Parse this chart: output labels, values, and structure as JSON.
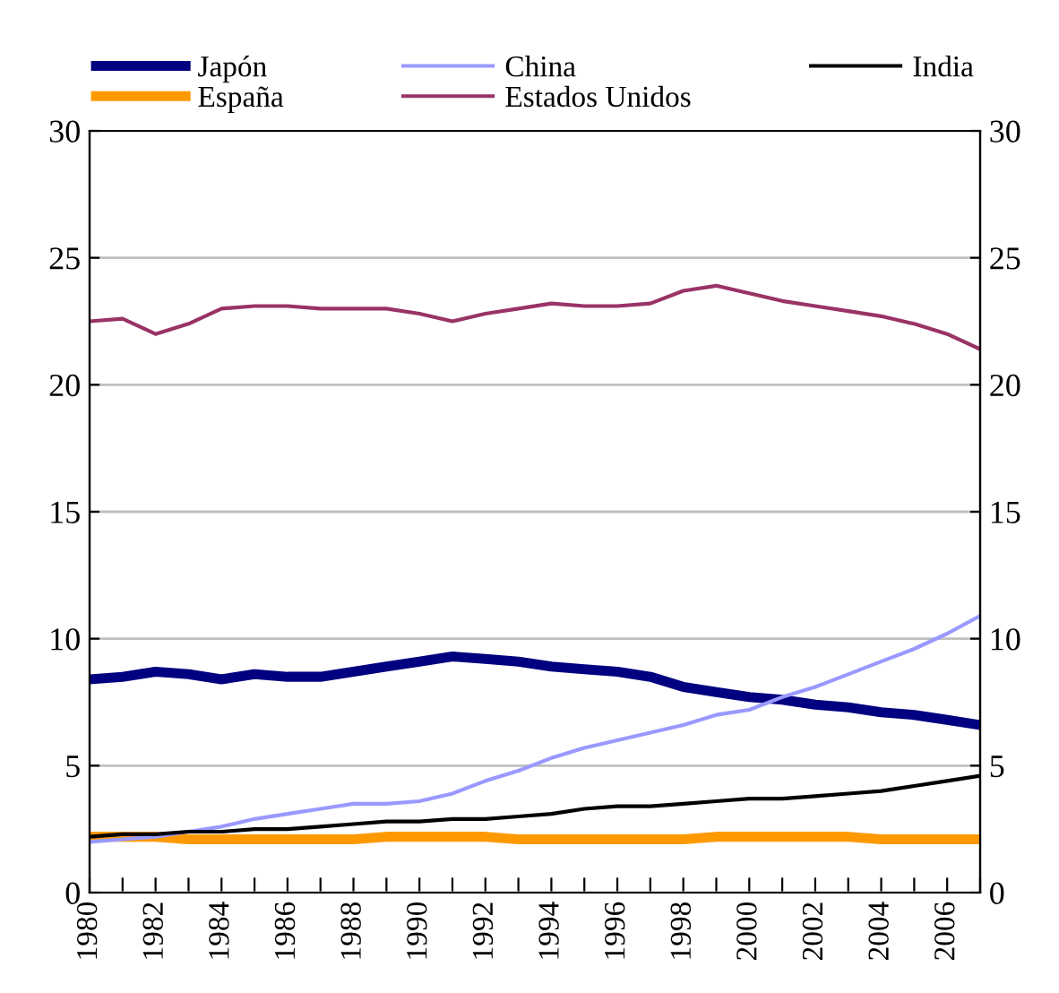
{
  "chart_data": {
    "type": "line",
    "x": [
      1980,
      1981,
      1982,
      1983,
      1984,
      1985,
      1986,
      1987,
      1988,
      1989,
      1990,
      1991,
      1992,
      1993,
      1994,
      1995,
      1996,
      1997,
      1998,
      1999,
      2000,
      2001,
      2002,
      2003,
      2004,
      2005,
      2006,
      2007
    ],
    "xlim": [
      1980,
      2007
    ],
    "xticks": [
      1980,
      {
        "value": 1981,
        "label": null
      },
      1982,
      {
        "value": 1983,
        "label": null
      },
      1984,
      {
        "value": 1985,
        "label": null
      },
      1986,
      {
        "value": 1987,
        "label": null
      },
      1988,
      {
        "value": 1989,
        "label": null
      },
      1990,
      {
        "value": 1991,
        "label": null
      },
      1992,
      {
        "value": 1993,
        "label": null
      },
      1994,
      {
        "value": 1995,
        "label": null
      },
      1996,
      {
        "value": 1997,
        "label": null
      },
      1998,
      {
        "value": 1999,
        "label": null
      },
      2000,
      {
        "value": 2001,
        "label": null
      },
      2002,
      {
        "value": 2003,
        "label": null
      },
      2004,
      {
        "value": 2005,
        "label": null
      },
      2006,
      {
        "value": 2007,
        "label": null
      }
    ],
    "ylim": [
      0,
      30
    ],
    "yticks": [
      0,
      5,
      10,
      15,
      20,
      25,
      30
    ],
    "y2lim": [
      0,
      30
    ],
    "y2ticks": [
      0,
      5,
      10,
      15,
      20,
      25,
      30
    ],
    "grid": "y",
    "legend": "top",
    "marker": "none",
    "line_style": "solid",
    "series": [
      {
        "name": "Japón",
        "color": "#000080",
        "values": [
          8.4,
          8.5,
          8.7,
          8.6,
          8.4,
          8.6,
          8.5,
          8.5,
          8.7,
          8.9,
          9.1,
          9.3,
          9.2,
          9.1,
          8.9,
          8.8,
          8.7,
          8.5,
          8.1,
          7.9,
          7.7,
          7.6,
          7.4,
          7.3,
          7.1,
          7.0,
          6.8,
          6.6
        ]
      },
      {
        "name": "China",
        "color": "#9999ff",
        "values": [
          2.0,
          2.1,
          2.2,
          2.4,
          2.6,
          2.9,
          3.1,
          3.3,
          3.5,
          3.5,
          3.6,
          3.9,
          4.4,
          4.8,
          5.3,
          5.7,
          6.0,
          6.3,
          6.6,
          7.0,
          7.2,
          7.7,
          8.1,
          8.6,
          9.1,
          9.6,
          10.2,
          10.9
        ]
      },
      {
        "name": "India",
        "color": "#000000",
        "values": [
          2.2,
          2.3,
          2.3,
          2.4,
          2.4,
          2.5,
          2.5,
          2.6,
          2.7,
          2.8,
          2.8,
          2.9,
          2.9,
          3.0,
          3.1,
          3.3,
          3.4,
          3.4,
          3.5,
          3.6,
          3.7,
          3.7,
          3.8,
          3.9,
          4.0,
          4.2,
          4.4,
          4.6
        ]
      },
      {
        "name": "España",
        "color": "#ff9900",
        "values": [
          2.2,
          2.2,
          2.2,
          2.1,
          2.1,
          2.1,
          2.1,
          2.1,
          2.1,
          2.2,
          2.2,
          2.2,
          2.2,
          2.1,
          2.1,
          2.1,
          2.1,
          2.1,
          2.1,
          2.2,
          2.2,
          2.2,
          2.2,
          2.2,
          2.1,
          2.1,
          2.1,
          2.1
        ]
      },
      {
        "name": "Estados Unidos",
        "color": "#993366",
        "values": [
          22.5,
          22.6,
          22.0,
          22.4,
          23.0,
          23.1,
          23.1,
          23.0,
          23.0,
          23.0,
          22.8,
          22.5,
          22.8,
          23.0,
          23.2,
          23.1,
          23.1,
          23.2,
          23.7,
          23.9,
          23.6,
          23.3,
          23.1,
          22.9,
          22.7,
          22.4,
          22.0,
          21.4
        ]
      }
    ]
  }
}
